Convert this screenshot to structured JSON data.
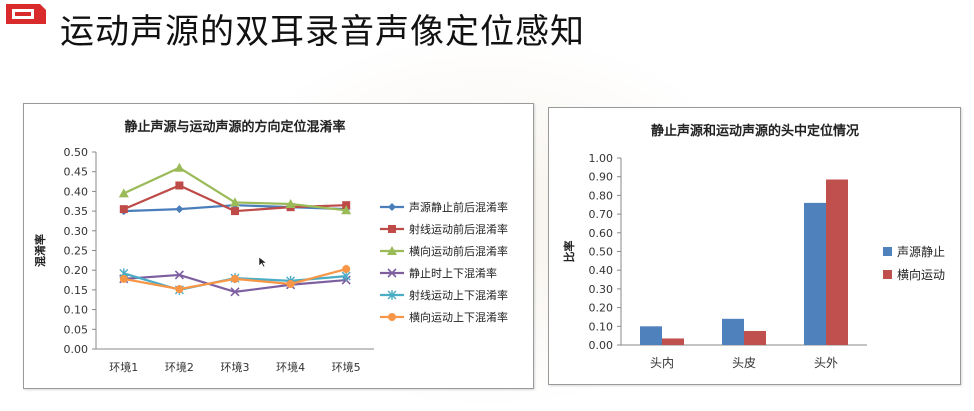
{
  "slide": {
    "title": "运动声源的双耳录音声像定位感知"
  },
  "colors": {
    "blue": "#4a7ebb",
    "red": "#be4b48",
    "green": "#9bbb59",
    "purple": "#7d5fa0",
    "cyan": "#4bacc6",
    "orange": "#f79646"
  },
  "chart_data": [
    {
      "type": "line",
      "title": "静止声源与运动声源的方向定位混淆率",
      "xlabel": "",
      "ylabel": "混淆率",
      "categories": [
        "环境1",
        "环境2",
        "环境3",
        "环境4",
        "环境5"
      ],
      "ylim": [
        0,
        0.5
      ],
      "yticks": [
        "0.00",
        "0.05",
        "0.10",
        "0.15",
        "0.20",
        "0.25",
        "0.30",
        "0.35",
        "0.40",
        "0.45",
        "0.50"
      ],
      "grid": false,
      "legend": "right",
      "series": [
        {
          "name": "声源静止前后混淆率",
          "values": [
            0.35,
            0.355,
            0.365,
            0.36,
            0.355
          ],
          "color": "#4a7ebb",
          "marker": "diamond"
        },
        {
          "name": "射线运动前后混淆率",
          "values": [
            0.355,
            0.415,
            0.35,
            0.36,
            0.365
          ],
          "color": "#be4b48",
          "marker": "square"
        },
        {
          "name": "横向运动前后混淆率",
          "values": [
            0.395,
            0.46,
            0.372,
            0.368,
            0.352
          ],
          "color": "#9bbb59",
          "marker": "triangle"
        },
        {
          "name": "静止时上下混淆率",
          "values": [
            0.178,
            0.188,
            0.145,
            0.163,
            0.175
          ],
          "color": "#7d5fa0",
          "marker": "x"
        },
        {
          "name": "射线运动上下混淆率",
          "values": [
            0.192,
            0.15,
            0.18,
            0.173,
            0.185
          ],
          "color": "#4bacc6",
          "marker": "star"
        },
        {
          "name": "横向运动上下混淆率",
          "values": [
            0.178,
            0.152,
            0.178,
            0.165,
            0.203
          ],
          "color": "#f79646",
          "marker": "circle"
        }
      ]
    },
    {
      "type": "bar",
      "title": "静止声源和运动声源的头中定位情况",
      "xlabel": "",
      "ylabel": "比率",
      "categories": [
        "头内",
        "头皮",
        "头外"
      ],
      "ylim": [
        0,
        1.0
      ],
      "yticks": [
        "0.00",
        "0.10",
        "0.20",
        "0.30",
        "0.40",
        "0.50",
        "0.60",
        "0.70",
        "0.80",
        "0.90",
        "1.00"
      ],
      "grid": false,
      "legend": "right",
      "series": [
        {
          "name": "声源静止",
          "values": [
            0.1,
            0.14,
            0.76
          ],
          "color": "#4f81bd"
        },
        {
          "name": "横向运动",
          "values": [
            0.035,
            0.075,
            0.885
          ],
          "color": "#c0504d"
        }
      ]
    }
  ]
}
